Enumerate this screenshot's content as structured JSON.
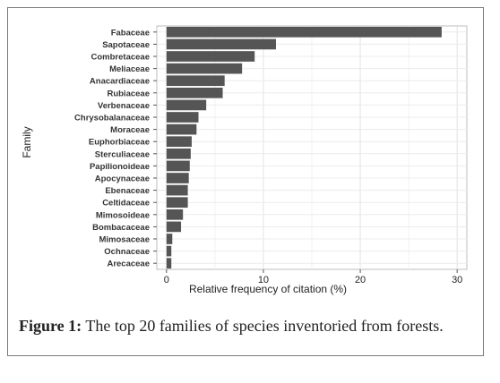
{
  "figure": {
    "caption_label": "Figure 1:",
    "caption_text": " The top 20 families of species inventoried from forests."
  },
  "chart_data": {
    "type": "bar",
    "orientation": "horizontal",
    "ylabel": "Family",
    "xlabel": "Relative frequency of citation (%)",
    "xlim": [
      -1,
      31
    ],
    "xticks": [
      0,
      10,
      20,
      30
    ],
    "grid": true,
    "categories": [
      "Fabaceae",
      "Sapotaceae",
      "Combretaceae",
      "Meliaceae",
      "Anacardiaceae",
      "Rubiaceae",
      "Verbenaceae",
      "Chrysobalanaceae",
      "Moraceae",
      "Euphorbiaceae",
      "Sterculiaceae",
      "Papilionoideae",
      "Apocynaceae",
      "Ebenaceae",
      "Celtidaceae",
      "Mimosoideae",
      "Bombacaceae",
      "Mimosaceae",
      "Ochnaceae",
      "Arecaceae"
    ],
    "values": [
      28.4,
      11.3,
      9.1,
      7.8,
      6.0,
      5.8,
      4.1,
      3.3,
      3.1,
      2.6,
      2.5,
      2.4,
      2.3,
      2.2,
      2.2,
      1.7,
      1.5,
      0.6,
      0.5,
      0.5
    ],
    "bar_color": "#555555"
  }
}
